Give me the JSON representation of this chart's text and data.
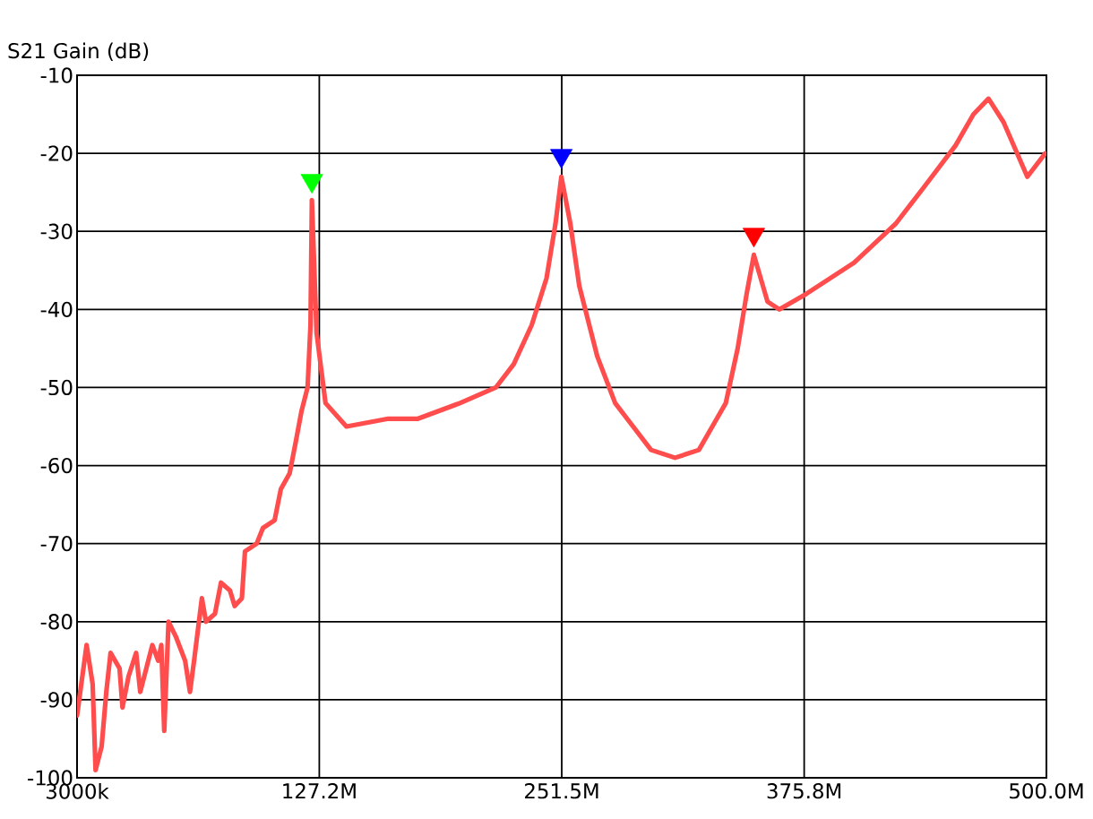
{
  "chart_data": {
    "type": "line",
    "ylabel": "S21 Gain (dB)",
    "xlim": [
      3000000,
      500000000
    ],
    "ylim": [
      -100,
      -10
    ],
    "xticks": [
      {
        "value": 3000000,
        "label": "3000k"
      },
      {
        "value": 127200000,
        "label": "127.2M"
      },
      {
        "value": 251500000,
        "label": "251.5M"
      },
      {
        "value": 375800000,
        "label": "375.8M"
      },
      {
        "value": 500000000,
        "label": "500.0M"
      }
    ],
    "yticks": [
      -100,
      -90,
      -80,
      -70,
      -60,
      -50,
      -40,
      -30,
      -20,
      -10
    ],
    "grid": true,
    "series": [
      {
        "color": "#ff4d4d",
        "marker": "none",
        "x": [
          3000000,
          7900000,
          11000000,
          12500000,
          15600000,
          18000000,
          20200000,
          24800000,
          26300000,
          29400000,
          33300000,
          35400000,
          38500000,
          41600000,
          44600000,
          46200000,
          47700000,
          49900000,
          53800000,
          58400000,
          60900000,
          63000000,
          67000000,
          69100000,
          73700000,
          76800000,
          81400000,
          83800000,
          87500000,
          89100000,
          95100000,
          98300000,
          104300000,
          107500000,
          112000000,
          115100000,
          118100000,
          121200000,
          122700000,
          123400000,
          125800000,
          130400000,
          141100000,
          162600000,
          177800000,
          199300000,
          217700000,
          226900000,
          236100000,
          243700000,
          248300000,
          251300000,
          255900000,
          260500000,
          269700000,
          278900000,
          285000000,
          297300000,
          309600000,
          321800000,
          331000000,
          335600000,
          341700000,
          346300000,
          350000000,
          357000000,
          363100000,
          376900000,
          401400000,
          422800000,
          438200000,
          453400000,
          462600000,
          470300000,
          478000000,
          490200000,
          499400000
        ],
        "values": [
          -92,
          -83,
          -88,
          -99,
          -96,
          -89,
          -84,
          -86,
          -91,
          -87,
          -84,
          -89,
          -86,
          -83,
          -85,
          -83,
          -94,
          -80,
          -82,
          -85,
          -89,
          -85,
          -77,
          -80,
          -79,
          -75,
          -76,
          -78,
          -77,
          -71,
          -70,
          -68,
          -67,
          -63,
          -61,
          -57,
          -53,
          -50,
          -42,
          -26,
          -43,
          -52,
          -55,
          -54,
          -54,
          -52,
          -50,
          -47,
          -42,
          -36,
          -29,
          -23,
          -29,
          -37,
          -46,
          -52,
          -54,
          -58,
          -59,
          -58,
          -54,
          -52,
          -45,
          -38,
          -33,
          -39,
          -40,
          -38,
          -34,
          -29,
          -24,
          -19,
          -15,
          -13,
          -16,
          -23,
          -20
        ]
      },
      {
        "type": "scatter",
        "marker": "triangle",
        "colors": [
          "#00ff00",
          "#0000ff",
          "#ff0000"
        ],
        "x": [
          123400000,
          251300000,
          350000000
        ],
        "values": [
          -23.5,
          -20.3,
          -30.4
        ]
      }
    ]
  }
}
